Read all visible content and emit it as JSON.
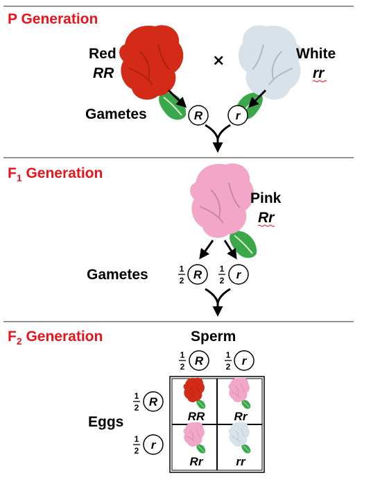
{
  "sections": {
    "p": {
      "title": "P Generation"
    },
    "f1": {
      "title_main": "F",
      "title_sub": "1",
      "title_rest": " Generation"
    },
    "f2": {
      "title_main": "F",
      "title_sub": "2",
      "title_rest": " Generation"
    }
  },
  "p_generation": {
    "left_parent": {
      "phenotype": "Red",
      "genotype": "RR",
      "flower_color": "#d42a18"
    },
    "right_parent": {
      "phenotype": "White",
      "genotype": "rr",
      "flower_color": "#d8e2ea"
    },
    "cross_symbol": "×",
    "gametes_label": "Gametes",
    "gamete_left": "R",
    "gamete_right": "r"
  },
  "f1_generation": {
    "phenotype": "Pink",
    "genotype": "Rr",
    "flower_color": "#f2a6c8",
    "gametes_label": "Gametes",
    "gamete_left": {
      "fraction_num": "1",
      "fraction_den": "2",
      "allele": "R"
    },
    "gamete_right": {
      "fraction_num": "1",
      "fraction_den": "2",
      "allele": "r"
    }
  },
  "f2_generation": {
    "sperm_label": "Sperm",
    "eggs_label": "Eggs",
    "sperm": [
      {
        "fraction_num": "1",
        "fraction_den": "2",
        "allele": "R"
      },
      {
        "fraction_num": "1",
        "fraction_den": "2",
        "allele": "r"
      }
    ],
    "eggs": [
      {
        "fraction_num": "1",
        "fraction_den": "2",
        "allele": "R"
      },
      {
        "fraction_num": "1",
        "fraction_den": "2",
        "allele": "r"
      }
    ],
    "cells": [
      {
        "genotype": "RR",
        "flower_color": "#d42a18"
      },
      {
        "genotype": "Rr",
        "flower_color": "#f2a6c8"
      },
      {
        "genotype": "Rr",
        "flower_color": "#f2a6c8"
      },
      {
        "genotype": "rr",
        "flower_color": "#d8e2ea"
      }
    ]
  },
  "colors": {
    "section_title": "#e8141b",
    "divider": "#555555",
    "leaf": "#3aa84a"
  }
}
